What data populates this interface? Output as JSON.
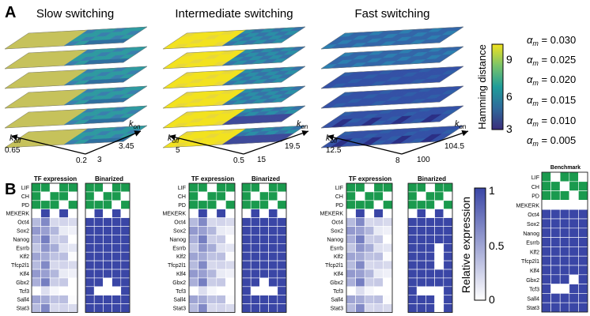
{
  "panel_labels": {
    "a": "A",
    "b": "B"
  },
  "panel_a": {
    "columns": [
      {
        "title": "Slow switching",
        "axis": {
          "koff_min": "0.65",
          "koff_max": "0.2",
          "kon_min": "3",
          "kon_max": "3.45"
        }
      },
      {
        "title": "Intermediate switching",
        "axis": {
          "koff_min": "5",
          "koff_max": "0.5",
          "kon_min": "15",
          "kon_max": "19.5"
        }
      },
      {
        "title": "Fast switching",
        "axis": {
          "koff_min": "12.5",
          "koff_max": "8",
          "kon_min": "100",
          "kon_max": "104.5"
        }
      }
    ],
    "koff_label": {
      "k": "k",
      "sub": "off"
    },
    "kon_label": {
      "k": "k",
      "sub": "on"
    },
    "colorbar": {
      "title": "Hamming distance",
      "ticks": [
        "9",
        "6",
        "3"
      ]
    },
    "alpha_label": {
      "a": "α",
      "sub": "m",
      "eq": " = "
    },
    "alpha_values": [
      "0.030",
      "0.025",
      "0.020",
      "0.015",
      "0.010",
      "0.005"
    ]
  },
  "panel_b": {
    "tf_header": "TF expression",
    "bin_header": "Binarized",
    "benchmark_header": "Benchmark",
    "rows": [
      "LIF",
      "CH",
      "PD",
      "MEKERK",
      "Oct4",
      "Sox2",
      "Nanog",
      "Esrrb",
      "Klf2",
      "Tfcp2l1",
      "Klf4",
      "Gbx2",
      "Tcf3",
      "Sall4",
      "Stat3"
    ],
    "colorbar": {
      "title": "Relative expression",
      "ticks": [
        "1",
        "0.5",
        "0"
      ]
    }
  },
  "colors": {
    "green": "#1a9a4e",
    "blue": "#3a46a6",
    "yellow": "#f2e21f",
    "olive": "#c6c25b",
    "navy": "#3b2d7c"
  }
}
